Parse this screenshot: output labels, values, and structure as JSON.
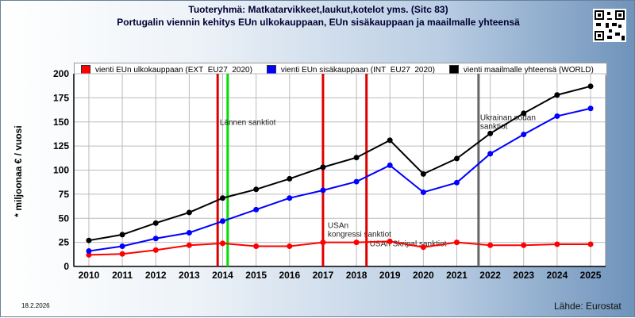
{
  "header": {
    "title": "Tuoteryhmä: Matkatarvikkeet,laukut,kotelot yms. (Sitc 83)",
    "subtitle": "Portugalin viennin kehitys EUn ulkokauppaan, EUn sisäkauppaan ja maailmalle yhteensä"
  },
  "footer": {
    "date": "18.2.2026",
    "source": "Lähde: Eurostat"
  },
  "colors": {
    "ext": "#ff0000",
    "int": "#0000ff",
    "world": "#000000",
    "event_red": "#dd0000",
    "event_green": "#00dd00",
    "event_gray": "#666666"
  },
  "chart_data": {
    "type": "line",
    "title": "Tuoteryhmä: Matkatarvikkeet,laukut,kotelot yms. (Sitc 83)",
    "subtitle": "Portugalin viennin kehitys EUn ulkokauppaan, EUn sisäkauppaan ja maailmalle yhteensä",
    "xlabel": "",
    "ylabel": "* miljoonaa € / vuosi",
    "x": [
      2010,
      2011,
      2012,
      2013,
      2014,
      2015,
      2016,
      2017,
      2018,
      2019,
      2020,
      2021,
      2022,
      2023,
      2024,
      2025
    ],
    "ylim": [
      0,
      200
    ],
    "yticks": [
      0,
      25,
      50,
      75,
      100,
      125,
      150,
      175,
      200
    ],
    "grid": true,
    "legend_position": "top",
    "series": [
      {
        "name": "vienti EUn ulkokauppaan (EXT_EU27_2020)",
        "color": "#ff0000",
        "values": [
          12,
          13,
          17,
          22,
          24,
          21,
          21,
          25,
          25,
          26,
          20,
          25,
          22,
          22,
          23,
          23
        ]
      },
      {
        "name": "vienti EUn sisäkauppaan (INT_EU27_2020)",
        "color": "#0000ff",
        "values": [
          16,
          21,
          29,
          35,
          47,
          59,
          71,
          79,
          88,
          105,
          77,
          87,
          117,
          137,
          156,
          164
        ]
      },
      {
        "name": "vienti maailmalle yhteensä (WORLD)",
        "color": "#000000",
        "values": [
          27,
          33,
          45,
          56,
          71,
          80,
          91,
          103,
          113,
          131,
          96,
          112,
          138,
          159,
          178,
          187
        ]
      }
    ],
    "events": [
      {
        "x": 2013.85,
        "color": "#dd0000",
        "label": ""
      },
      {
        "x": 2014.15,
        "color": "#00dd00",
        "label": "Lännen sanktiot"
      },
      {
        "x": 2017.0,
        "color": "#dd0000",
        "label": "USAn kongressi sanktiot"
      },
      {
        "x": 2018.3,
        "color": "#dd0000",
        "label": "USAn Skripal sanktiot"
      },
      {
        "x": 2021.65,
        "color": "#666666",
        "label": "Ukrainan sodan sanktiot"
      }
    ]
  }
}
